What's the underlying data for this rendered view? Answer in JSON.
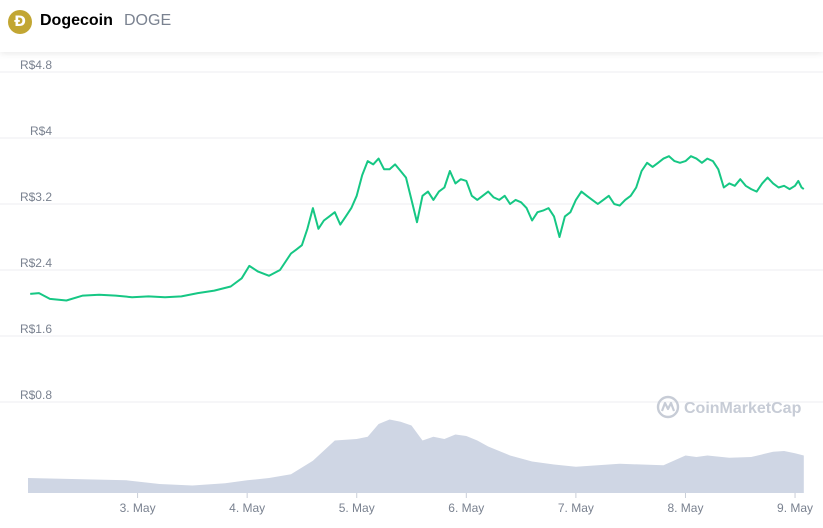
{
  "header": {
    "coin_logo_glyph": "Ð",
    "coin_name": "Dogecoin",
    "coin_symbol": "DOGE"
  },
  "watermark": "CoinMarketCap",
  "colors": {
    "price_line": "#16c784",
    "volume_fill": "#cfd6e4",
    "grid": "#eceef2",
    "axis_text": "#7a8290",
    "coin_logo": "#c2a633",
    "watermark": "#c7ccd6"
  },
  "chart_data": {
    "type": "line",
    "title": "",
    "xlabel": "",
    "ylabel": "",
    "currency": "R$",
    "ylim": [
      0,
      4.8
    ],
    "yticks": [
      0.8,
      1.6,
      2.4,
      3.2,
      4,
      4.8
    ],
    "ytick_labels": [
      "R$0.8",
      "R$1.6",
      "R$2.4",
      "R$3.2",
      "R$4",
      "R$4.8"
    ],
    "xlim": [
      2.0,
      9.1
    ],
    "xticks": [
      3,
      4,
      5,
      6,
      7,
      8,
      9
    ],
    "xtick_labels": [
      "3. May",
      "4. May",
      "5. May",
      "6. May",
      "7. May",
      "8. May",
      "9. May"
    ],
    "grid": true,
    "price_series": {
      "x": [
        2.02,
        2.1,
        2.2,
        2.35,
        2.5,
        2.65,
        2.8,
        2.95,
        3.1,
        3.25,
        3.4,
        3.55,
        3.7,
        3.85,
        3.95,
        4.02,
        4.1,
        4.2,
        4.3,
        4.4,
        4.45,
        4.5,
        4.55,
        4.6,
        4.65,
        4.7,
        4.75,
        4.8,
        4.85,
        4.9,
        4.95,
        5.0,
        5.05,
        5.1,
        5.15,
        5.2,
        5.25,
        5.3,
        5.35,
        5.4,
        5.45,
        5.5,
        5.55,
        5.6,
        5.65,
        5.7,
        5.75,
        5.8,
        5.85,
        5.9,
        5.95,
        6.0,
        6.05,
        6.1,
        6.15,
        6.2,
        6.25,
        6.3,
        6.35,
        6.4,
        6.45,
        6.5,
        6.55,
        6.6,
        6.65,
        6.7,
        6.75,
        6.8,
        6.85,
        6.9,
        6.95,
        7.0,
        7.05,
        7.1,
        7.15,
        7.2,
        7.25,
        7.3,
        7.35,
        7.4,
        7.45,
        7.5,
        7.55,
        7.6,
        7.65,
        7.7,
        7.75,
        7.8,
        7.85,
        7.9,
        7.95,
        8.0,
        8.05,
        8.1,
        8.15,
        8.2,
        8.25,
        8.3,
        8.35,
        8.4,
        8.45,
        8.5,
        8.55,
        8.6,
        8.65,
        8.7,
        8.75,
        8.8,
        8.85,
        8.9,
        8.95,
        9.0,
        9.03,
        9.06,
        9.08
      ],
      "y": [
        2.11,
        2.12,
        2.05,
        2.03,
        2.09,
        2.1,
        2.09,
        2.07,
        2.08,
        2.07,
        2.08,
        2.12,
        2.15,
        2.2,
        2.3,
        2.45,
        2.38,
        2.33,
        2.4,
        2.6,
        2.65,
        2.7,
        2.9,
        3.15,
        2.9,
        3.0,
        3.05,
        3.1,
        2.95,
        3.05,
        3.15,
        3.3,
        3.55,
        3.72,
        3.68,
        3.75,
        3.62,
        3.62,
        3.68,
        3.6,
        3.52,
        3.25,
        2.98,
        3.3,
        3.35,
        3.25,
        3.35,
        3.4,
        3.6,
        3.45,
        3.5,
        3.48,
        3.3,
        3.25,
        3.3,
        3.35,
        3.28,
        3.25,
        3.3,
        3.2,
        3.25,
        3.22,
        3.15,
        3.0,
        3.1,
        3.12,
        3.15,
        3.05,
        2.8,
        3.05,
        3.1,
        3.25,
        3.35,
        3.3,
        3.25,
        3.2,
        3.25,
        3.3,
        3.2,
        3.18,
        3.25,
        3.3,
        3.4,
        3.6,
        3.7,
        3.65,
        3.7,
        3.75,
        3.78,
        3.72,
        3.7,
        3.72,
        3.78,
        3.75,
        3.7,
        3.75,
        3.72,
        3.62,
        3.4,
        3.45,
        3.42,
        3.5,
        3.42,
        3.38,
        3.35,
        3.45,
        3.52,
        3.45,
        3.4,
        3.42,
        3.38,
        3.42,
        3.48,
        3.4,
        3.38
      ],
      "name": ""
    },
    "volume_series": {
      "x": [
        2.0,
        2.3,
        2.6,
        2.9,
        3.2,
        3.5,
        3.8,
        4.0,
        4.2,
        4.4,
        4.6,
        4.8,
        5.0,
        5.1,
        5.2,
        5.3,
        5.4,
        5.5,
        5.6,
        5.7,
        5.8,
        5.9,
        6.0,
        6.1,
        6.2,
        6.4,
        6.6,
        6.8,
        7.0,
        7.2,
        7.4,
        7.6,
        7.8,
        8.0,
        8.1,
        8.2,
        8.4,
        8.6,
        8.8,
        8.9,
        9.0,
        9.08
      ],
      "y_relative": [
        0.2,
        0.19,
        0.18,
        0.17,
        0.12,
        0.1,
        0.13,
        0.17,
        0.2,
        0.25,
        0.43,
        0.7,
        0.72,
        0.75,
        0.92,
        0.98,
        0.95,
        0.9,
        0.7,
        0.75,
        0.72,
        0.78,
        0.76,
        0.7,
        0.62,
        0.5,
        0.42,
        0.38,
        0.35,
        0.37,
        0.39,
        0.38,
        0.37,
        0.5,
        0.48,
        0.5,
        0.47,
        0.48,
        0.55,
        0.56,
        0.53,
        0.5
      ]
    }
  }
}
